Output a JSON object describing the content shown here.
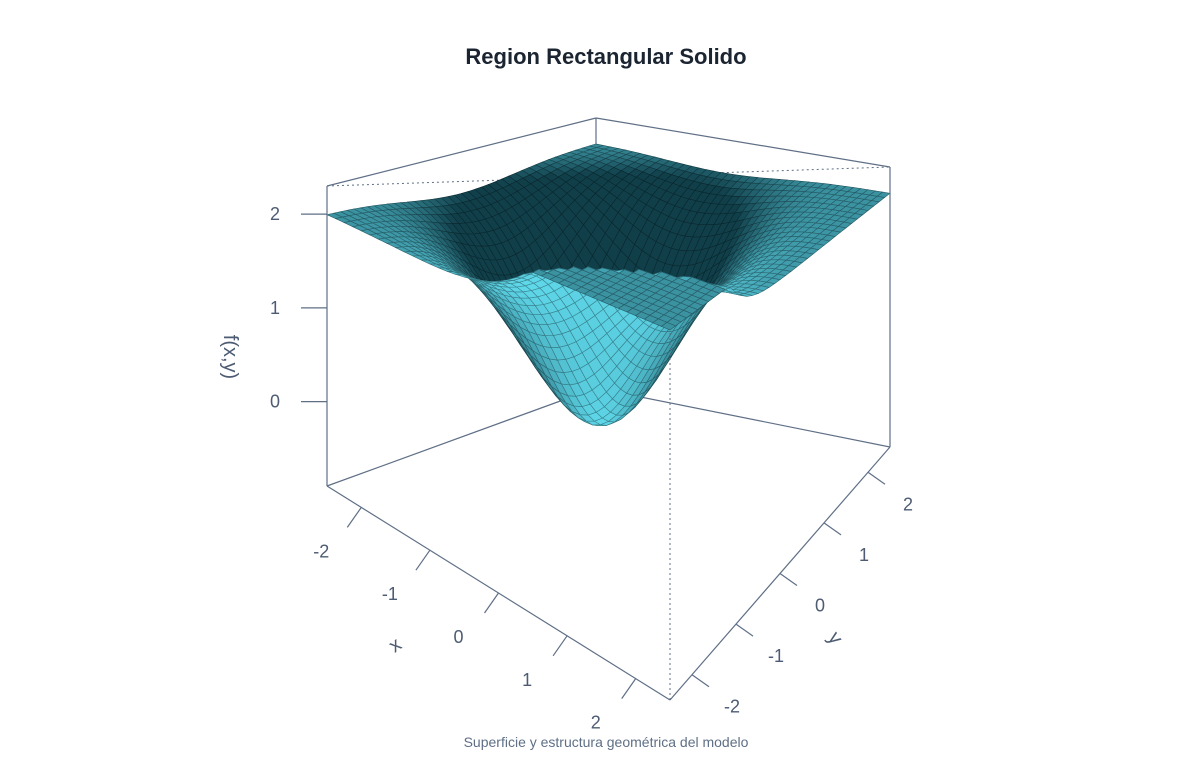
{
  "title": "Region Rectangular Solido",
  "caption": "Superficie y estructura geométrica del modelo",
  "chart_data": {
    "type": "surface3d",
    "function": "f(x,y) = 2 - exp(-(x^2 + y^2)/2)*(2 - 0.7*x) + (2/(1+exp(-2*(x-1.2)))) * exp(-(y+2.5)^2) (approximate reading of rendered surface)",
    "x_range": [
      -2.5,
      2.5
    ],
    "y_range": [
      -2.5,
      2.5
    ],
    "z_range": [
      -0.9,
      2.3
    ],
    "grid_n": 41,
    "xlabel": "x",
    "ylabel": "y",
    "zlabel": "f(x,y)",
    "x_ticks": [
      "-2",
      "-1",
      "0",
      "1",
      "2"
    ],
    "y_ticks": [
      "-2",
      "-1",
      "0",
      "1",
      "2"
    ],
    "z_ticks": [
      "0",
      "1",
      "2"
    ],
    "surface_color_dark": "#103f4a",
    "surface_color_light": "#5fd8ea",
    "box_color": "#5f6f86"
  }
}
